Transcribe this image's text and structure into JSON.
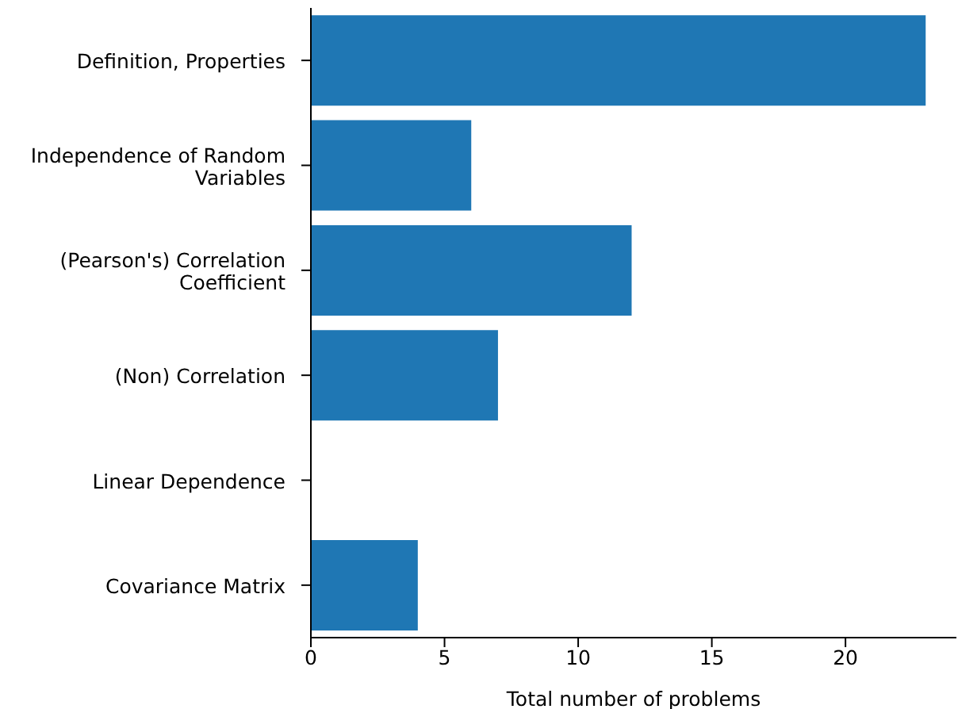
{
  "chart_data": {
    "type": "bar",
    "orientation": "horizontal",
    "xlabel": "Total number of problems",
    "categories": [
      "Definition, Properties",
      "Independence of Random Variables",
      "(Pearson's) Correlation Coefficient",
      "(Non) Correlation",
      "Linear Dependence",
      "Covariance Matrix"
    ],
    "values": [
      23,
      6,
      12,
      7,
      0,
      4
    ],
    "color": "#1f77b4",
    "xlim": [
      0,
      24.15
    ],
    "xticks": [
      0,
      5,
      10,
      15,
      20
    ],
    "grid": false,
    "legend": false
  }
}
